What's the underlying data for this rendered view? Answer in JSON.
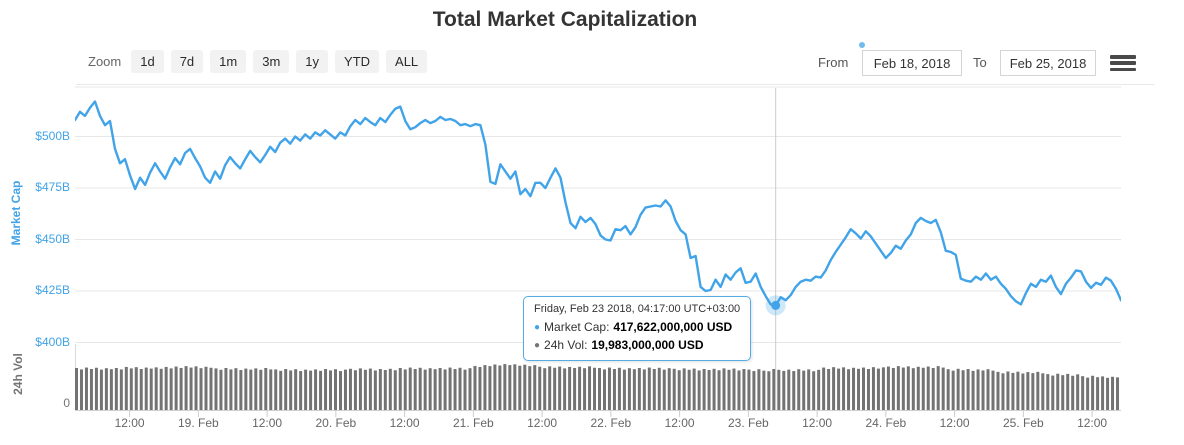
{
  "page": {
    "title": "Total Market Capitalization"
  },
  "toolbar": {
    "zoom_label": "Zoom",
    "zoom_buttons": [
      "1d",
      "7d",
      "1m",
      "3m",
      "1y",
      "YTD",
      "ALL"
    ],
    "from_label": "From",
    "from_value": "Feb 18, 2018",
    "to_label": "To",
    "to_value": "Feb 25, 2018",
    "menu_icon": "hamburger-menu"
  },
  "y_axis": {
    "title": "Market Cap",
    "tick_labels": [
      "$500B",
      "$475B",
      "$450B",
      "$425B",
      "$400B"
    ],
    "tick_values": [
      500,
      475,
      450,
      425,
      400
    ]
  },
  "volume_axis": {
    "title": "24h Vol",
    "zero_label": "0"
  },
  "x_axis": {
    "labels": [
      "12:00",
      "19. Feb",
      "12:00",
      "20. Feb",
      "12:00",
      "21. Feb",
      "12:00",
      "22. Feb",
      "12:00",
      "23. Feb",
      "12:00",
      "24. Feb",
      "12:00",
      "25. Feb",
      "12:00"
    ]
  },
  "tooltip": {
    "bullet": "●",
    "date": "Friday, Feb 23 2018, 04:17:00 UTC+03:00",
    "series1_label": "Market Cap:",
    "series1_value": "417,622,000,000 USD",
    "series2_label": "24h Vol:",
    "series2_value": "19,983,000,000 USD"
  },
  "colors": {
    "line": "#41a3e8",
    "volume_bars": "#737373",
    "grid": "#e7e7e7",
    "crosshair": "#cccccc",
    "marker_halo": "rgba(65,163,232,0.25)",
    "tooltip_border": "#56abe4"
  },
  "chart_data": {
    "type": "line",
    "title": "Total Market Capitalization",
    "subtitle": "",
    "time_range": "Feb 18, 2018 to Feb 25, 2018 (UTC+03:00)",
    "x_tick_labels": [
      "12:00",
      "19. Feb",
      "12:00",
      "20. Feb",
      "12:00",
      "21. Feb",
      "12:00",
      "22. Feb",
      "12:00",
      "23. Feb",
      "12:00",
      "24. Feb",
      "12:00",
      "25. Feb",
      "12:00"
    ],
    "y_axis_label": "Market Cap",
    "y_axis_ticks_billions": [
      400,
      425,
      450,
      475,
      500
    ],
    "y_axis_range_billions": [
      396,
      524
    ],
    "volume_axis_label": "24h Vol",
    "grid": "horizontal",
    "legend_position": "none",
    "sampling": "uniform, ~52 minutes per point, Feb 18 ~02:30 to Feb 25 ~17:00 (UTC+03:00)",
    "market_cap_billions_usd": [
      508,
      512,
      510,
      514,
      517,
      510,
      505.5,
      507.5,
      494,
      487,
      489,
      481,
      474.5,
      480,
      476.5,
      482.5,
      487,
      483,
      479.5,
      485,
      489.5,
      486.5,
      492,
      494,
      489.5,
      485.5,
      480,
      477.5,
      483,
      479.5,
      486,
      490,
      487,
      484.5,
      489,
      493,
      490,
      487.5,
      491,
      495,
      492.5,
      497,
      499,
      496.5,
      500,
      498,
      501,
      499,
      502,
      500.5,
      503,
      501,
      499,
      502,
      500.5,
      505,
      508,
      506,
      509,
      507,
      505.5,
      509,
      507,
      510.5,
      513.5,
      514.5,
      507.5,
      503.5,
      504.5,
      506.5,
      508,
      506.5,
      507.5,
      509.5,
      508,
      508.5,
      507.5,
      505.5,
      506,
      505,
      506,
      505.5,
      496,
      478,
      477,
      486.5,
      483,
      479.5,
      483,
      472,
      474.5,
      471,
      477.5,
      477.5,
      475,
      480,
      484.5,
      480,
      468,
      458,
      455.5,
      461,
      458.5,
      460.5,
      457.5,
      452,
      450,
      449.5,
      455,
      454.5,
      456.5,
      452.5,
      456,
      462,
      465.5,
      466,
      466.5,
      466,
      469,
      466,
      459,
      454.5,
      452.5,
      441,
      442,
      427,
      425,
      425.5,
      430.5,
      427,
      433,
      430.5,
      434,
      436,
      429,
      429.5,
      433.5,
      427,
      422.5,
      418.5,
      418,
      422,
      420.5,
      423,
      427,
      429.5,
      430.5,
      430,
      432,
      431.5,
      435,
      440,
      444,
      447.5,
      451,
      455,
      453,
      450.5,
      454,
      451.5,
      448,
      444.5,
      441,
      443.5,
      447,
      445.5,
      449.5,
      452.5,
      458,
      460.5,
      459,
      458,
      459.5,
      453.5,
      444.5,
      444,
      442.5,
      431,
      430,
      429.5,
      432,
      430.5,
      433.5,
      430.5,
      432,
      428.5,
      426,
      422.5,
      420,
      418.5,
      424,
      428.5,
      427,
      430.5,
      429.5,
      432.5,
      427,
      423.5,
      428.5,
      431.5,
      435,
      434.5,
      429.5,
      426.5,
      429,
      428,
      431.5,
      430,
      426,
      420.5
    ],
    "volume_24h_billions_usd": [
      20.5,
      19.8,
      20.7,
      20.0,
      20.6,
      19.7,
      20.4,
      19.9,
      20.5,
      19.8,
      21.0,
      20.3,
      20.9,
      20.0,
      20.7,
      20.2,
      20.8,
      20.1,
      21.0,
      20.3,
      21.2,
      20.5,
      21.4,
      20.7,
      21.3,
      20.4,
      21.1,
      20.6,
      20.3,
      19.6,
      20.5,
      19.8,
      20.4,
      19.5,
      20.2,
      19.7,
      20.3,
      19.6,
      20.5,
      19.8,
      19.8,
      19.1,
      20.0,
      19.3,
      19.9,
      19.0,
      19.7,
      19.2,
      19.8,
      19.1,
      20.0,
      19.3,
      19.9,
      19.0,
      19.7,
      20.1,
      19.4,
      20.3,
      19.6,
      20.2,
      19.3,
      20.0,
      19.5,
      20.1,
      19.4,
      20.5,
      19.8,
      20.7,
      20.0,
      20.6,
      19.7,
      20.4,
      19.9,
      20.5,
      19.8,
      20.7,
      20.0,
      20.6,
      19.7,
      20.4,
      21.5,
      21.0,
      21.9,
      21.4,
      22.2,
      21.7,
      22.4,
      21.9,
      22.3,
      21.6,
      22.1,
      21.4,
      21.9,
      21.1,
      20.4,
      21.3,
      20.6,
      21.2,
      20.3,
      21.0,
      20.5,
      21.1,
      20.4,
      21.3,
      20.6,
      20.5,
      19.8,
      20.7,
      20.0,
      20.6,
      19.7,
      20.4,
      19.9,
      20.5,
      19.8,
      20.7,
      20.0,
      20.6,
      19.7,
      20.4,
      20.1,
      19.4,
      20.3,
      19.6,
      20.2,
      19.3,
      20.0,
      19.5,
      20.1,
      19.4,
      20.3,
      19.6,
      20.2,
      19.3,
      20.0,
      19.7,
      19.0,
      19.9,
      19.2,
      18.9,
      20.0,
      19.6,
      19.1,
      19.7,
      19.0,
      19.9,
      19.2,
      19.8,
      18.9,
      19.6,
      20.7,
      20.0,
      20.9,
      20.2,
      20.8,
      19.9,
      20.6,
      20.1,
      20.7,
      20.0,
      20.9,
      20.2,
      20.8,
      21.2,
      20.5,
      21.4,
      20.7,
      21.3,
      20.4,
      21.1,
      20.6,
      21.2,
      20.5,
      21.4,
      20.7,
      19.9,
      19.2,
      20.1,
      19.4,
      20.0,
      19.1,
      19.8,
      19.3,
      19.9,
      19.2,
      18.6,
      17.9,
      18.8,
      18.1,
      18.7,
      17.8,
      18.5,
      18.0,
      18.6,
      17.9,
      17.5,
      16.8,
      17.7,
      17.0,
      17.6,
      16.7,
      17.4,
      16.5,
      15.8,
      16.7,
      16.0,
      16.4,
      15.7,
      16.2,
      15.9
    ],
    "highlight": {
      "index": 140,
      "time": "Friday, Feb 23 2018, 04:17:00 UTC+03:00",
      "market_cap_usd": "417,622,000,000 USD",
      "volume_24h_usd": "19,983,000,000 USD"
    }
  }
}
